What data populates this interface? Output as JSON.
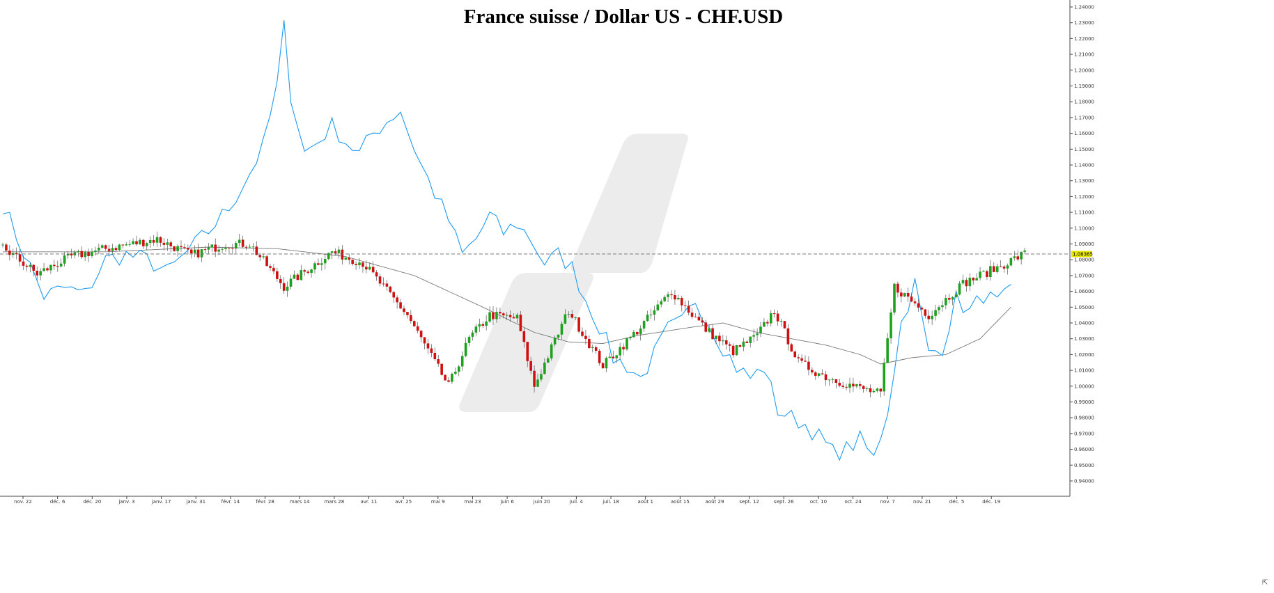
{
  "chart_data": {
    "type": "candlestick",
    "title": "France suisse / Dollar US - CHF.USD",
    "x_tick_labels": [
      "nov. 22",
      "déc. 6",
      "déc. 20",
      "janv. 3",
      "janv. 17",
      "janv. 31",
      "févr. 14",
      "févr. 28",
      "mars 14",
      "mars 28",
      "avr. 11",
      "avr. 25",
      "mai 9",
      "mai 23",
      "juin 6",
      "juin 20",
      "juil. 4",
      "juil. 18",
      "août 1",
      "août 15",
      "août 29",
      "sept. 12",
      "sept. 26",
      "oct. 10",
      "oct. 24",
      "nov. 7",
      "nov. 21",
      "déc. 5",
      "déc. 19"
    ],
    "y_tick_labels": [
      "0.94000",
      "0.95000",
      "0.96000",
      "0.97000",
      "0.98000",
      "0.99000",
      "1.00000",
      "1.01000",
      "1.02000",
      "1.03000",
      "1.04000",
      "1.05000",
      "1.06000",
      "1.07000",
      "1.08000",
      "1.09000",
      "1.10000",
      "1.11000",
      "1.12000",
      "1.13000",
      "1.14000",
      "1.15000",
      "1.16000",
      "1.17000",
      "1.18000",
      "1.19000",
      "1.20000",
      "1.21000",
      "1.22000",
      "1.23000",
      "1.24000"
    ],
    "ylim": [
      0.9355,
      1.2425
    ],
    "last_price": "1.08365",
    "last_price_value": 1.08365,
    "grid": false,
    "series": [
      {
        "name": "",
        "kind": "close-key-points",
        "color": "#000000",
        "points": [
          [
            0,
            1.088
          ],
          [
            10,
            1.071
          ],
          [
            20,
            1.082
          ],
          [
            30,
            1.087
          ],
          [
            45,
            1.093
          ],
          [
            55,
            1.083
          ],
          [
            65,
            1.09
          ],
          [
            72,
            1.09
          ],
          [
            82,
            1.063
          ],
          [
            96,
            1.085
          ],
          [
            105,
            1.078
          ],
          [
            118,
            1.045
          ],
          [
            130,
            1.0
          ],
          [
            136,
            1.03
          ],
          [
            142,
            1.045
          ],
          [
            150,
            1.043
          ],
          [
            155,
            1.0
          ],
          [
            165,
            1.048
          ],
          [
            175,
            1.013
          ],
          [
            185,
            1.035
          ],
          [
            195,
            1.06
          ],
          [
            205,
            1.036
          ],
          [
            213,
            1.022
          ],
          [
            220,
            1.032
          ],
          [
            225,
            1.048
          ],
          [
            232,
            1.015
          ],
          [
            240,
            1.006
          ],
          [
            248,
            1.0
          ],
          [
            256,
            0.995
          ],
          [
            260,
            1.063
          ],
          [
            270,
            1.045
          ],
          [
            280,
            1.065
          ],
          [
            290,
            1.075
          ],
          [
            298,
            1.084
          ]
        ]
      },
      {
        "name": "",
        "kind": "moving-average",
        "color": "#777777",
        "points": [
          [
            0,
            1.085
          ],
          [
            30,
            1.085
          ],
          [
            60,
            1.088
          ],
          [
            80,
            1.087
          ],
          [
            100,
            1.082
          ],
          [
            120,
            1.07
          ],
          [
            140,
            1.05
          ],
          [
            155,
            1.034
          ],
          [
            165,
            1.028
          ],
          [
            175,
            1.027
          ],
          [
            185,
            1.032
          ],
          [
            200,
            1.037
          ],
          [
            210,
            1.04
          ],
          [
            220,
            1.034
          ],
          [
            230,
            1.03
          ],
          [
            240,
            1.026
          ],
          [
            250,
            1.02
          ],
          [
            256,
            1.014
          ],
          [
            265,
            1.018
          ],
          [
            275,
            1.02
          ],
          [
            285,
            1.03
          ],
          [
            294,
            1.05
          ]
        ]
      },
      {
        "name": "",
        "kind": "overlay-line",
        "color": "#1e9bef",
        "points": [
          [
            0,
            1.115
          ],
          [
            6,
            1.085
          ],
          [
            12,
            1.057
          ],
          [
            18,
            1.062
          ],
          [
            24,
            1.058
          ],
          [
            30,
            1.08
          ],
          [
            36,
            1.083
          ],
          [
            42,
            1.08
          ],
          [
            48,
            1.072
          ],
          [
            54,
            1.085
          ],
          [
            60,
            1.098
          ],
          [
            66,
            1.113
          ],
          [
            72,
            1.135
          ],
          [
            76,
            1.152
          ],
          [
            80,
            1.19
          ],
          [
            82,
            1.227
          ],
          [
            84,
            1.185
          ],
          [
            88,
            1.148
          ],
          [
            92,
            1.155
          ],
          [
            96,
            1.165
          ],
          [
            100,
            1.155
          ],
          [
            104,
            1.147
          ],
          [
            108,
            1.16
          ],
          [
            112,
            1.168
          ],
          [
            116,
            1.175
          ],
          [
            118,
            1.162
          ],
          [
            122,
            1.14
          ],
          [
            126,
            1.122
          ],
          [
            130,
            1.105
          ],
          [
            134,
            1.083
          ],
          [
            138,
            1.093
          ],
          [
            142,
            1.108
          ],
          [
            146,
            1.097
          ],
          [
            150,
            1.103
          ],
          [
            154,
            1.093
          ],
          [
            158,
            1.078
          ],
          [
            162,
            1.083
          ],
          [
            166,
            1.075
          ],
          [
            170,
            1.055
          ],
          [
            174,
            1.038
          ],
          [
            178,
            1.018
          ],
          [
            182,
            1.013
          ],
          [
            186,
            1.005
          ],
          [
            190,
            1.02
          ],
          [
            194,
            1.036
          ],
          [
            198,
            1.04
          ],
          [
            202,
            1.055
          ],
          [
            206,
            1.04
          ],
          [
            210,
            1.025
          ],
          [
            214,
            1.012
          ],
          [
            218,
            1.005
          ],
          [
            222,
            1.012
          ],
          [
            226,
            0.985
          ],
          [
            230,
            0.98
          ],
          [
            234,
            0.976
          ],
          [
            238,
            0.968
          ],
          [
            242,
            0.958
          ],
          [
            246,
            0.96
          ],
          [
            250,
            0.966
          ],
          [
            254,
            0.954
          ],
          [
            258,
            0.985
          ],
          [
            262,
            1.04
          ],
          [
            266,
            1.065
          ],
          [
            270,
            1.02
          ],
          [
            274,
            1.025
          ],
          [
            278,
            1.055
          ],
          [
            282,
            1.047
          ],
          [
            286,
            1.058
          ],
          [
            290,
            1.052
          ],
          [
            294,
            1.059
          ]
        ]
      }
    ]
  },
  "ui": {
    "corner_icon": "settings-arrow-icon",
    "corner_glyph": "⇱"
  }
}
